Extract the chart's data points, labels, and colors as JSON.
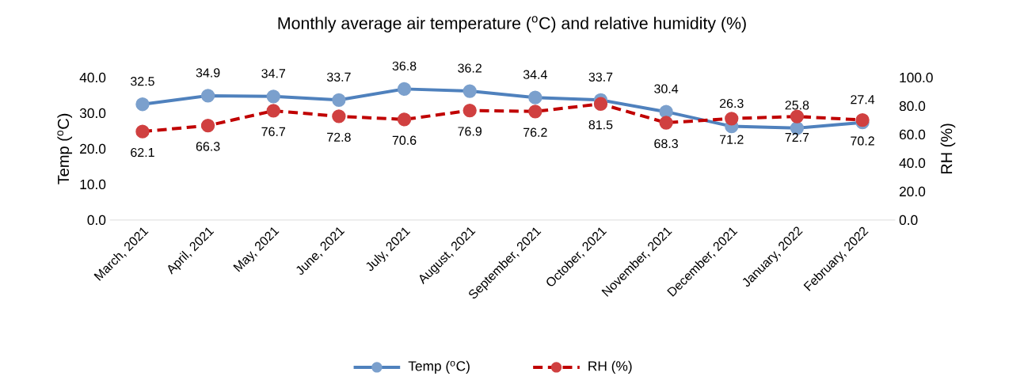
{
  "chart_data": {
    "type": "line",
    "title": "Monthly average air temperature ($^{o}$C) and relative humidity (%)",
    "ylabel": "Temp ($^{o}$C)",
    "y2label": "RH (%)",
    "categories": [
      "March, 2021",
      "April, 2021",
      "May, 2021",
      "June, 2021",
      "July, 2021",
      "August, 2021",
      "September, 2021",
      "October, 2021",
      "November, 2021",
      "December, 2021",
      "January, 2022",
      "February, 2022"
    ],
    "series": [
      {
        "name": "Temp ($^{o}$C)",
        "color": "#4f81bd",
        "line_style": "solid",
        "values": [
          32.5,
          34.9,
          34.7,
          33.7,
          36.8,
          36.2,
          34.4,
          33.7,
          30.4,
          26.3,
          25.8,
          27.4
        ]
      },
      {
        "name": "RH (%)",
        "color": "#c00000",
        "line_style": "dashed",
        "axis": "y2",
        "values": [
          62.1,
          66.3,
          76.7,
          72.8,
          70.6,
          76.9,
          76.2,
          81.5,
          68.3,
          71.2,
          72.7,
          70.2
        ]
      }
    ],
    "ylim": [
      0,
      40
    ],
    "yticks": [
      {
        "value": 0,
        "label": "0.0"
      },
      {
        "value": 10,
        "label": "10.0"
      },
      {
        "value": 20,
        "label": "20.0"
      },
      {
        "value": 30,
        "label": "30.0"
      },
      {
        "value": 40,
        "label": "40.0"
      }
    ],
    "y2lim": [
      0,
      100
    ],
    "y2ticks": [
      {
        "value": 0,
        "label": "0.0"
      },
      {
        "value": 20,
        "label": "20.0"
      },
      {
        "value": 40,
        "label": "40.0"
      },
      {
        "value": 60,
        "label": "60.0"
      },
      {
        "value": 80,
        "label": "80.0"
      },
      {
        "value": 100,
        "label": "100.0"
      }
    ],
    "marker": "circle",
    "data_labels": true,
    "legend": "bottom",
    "grid": false
  }
}
